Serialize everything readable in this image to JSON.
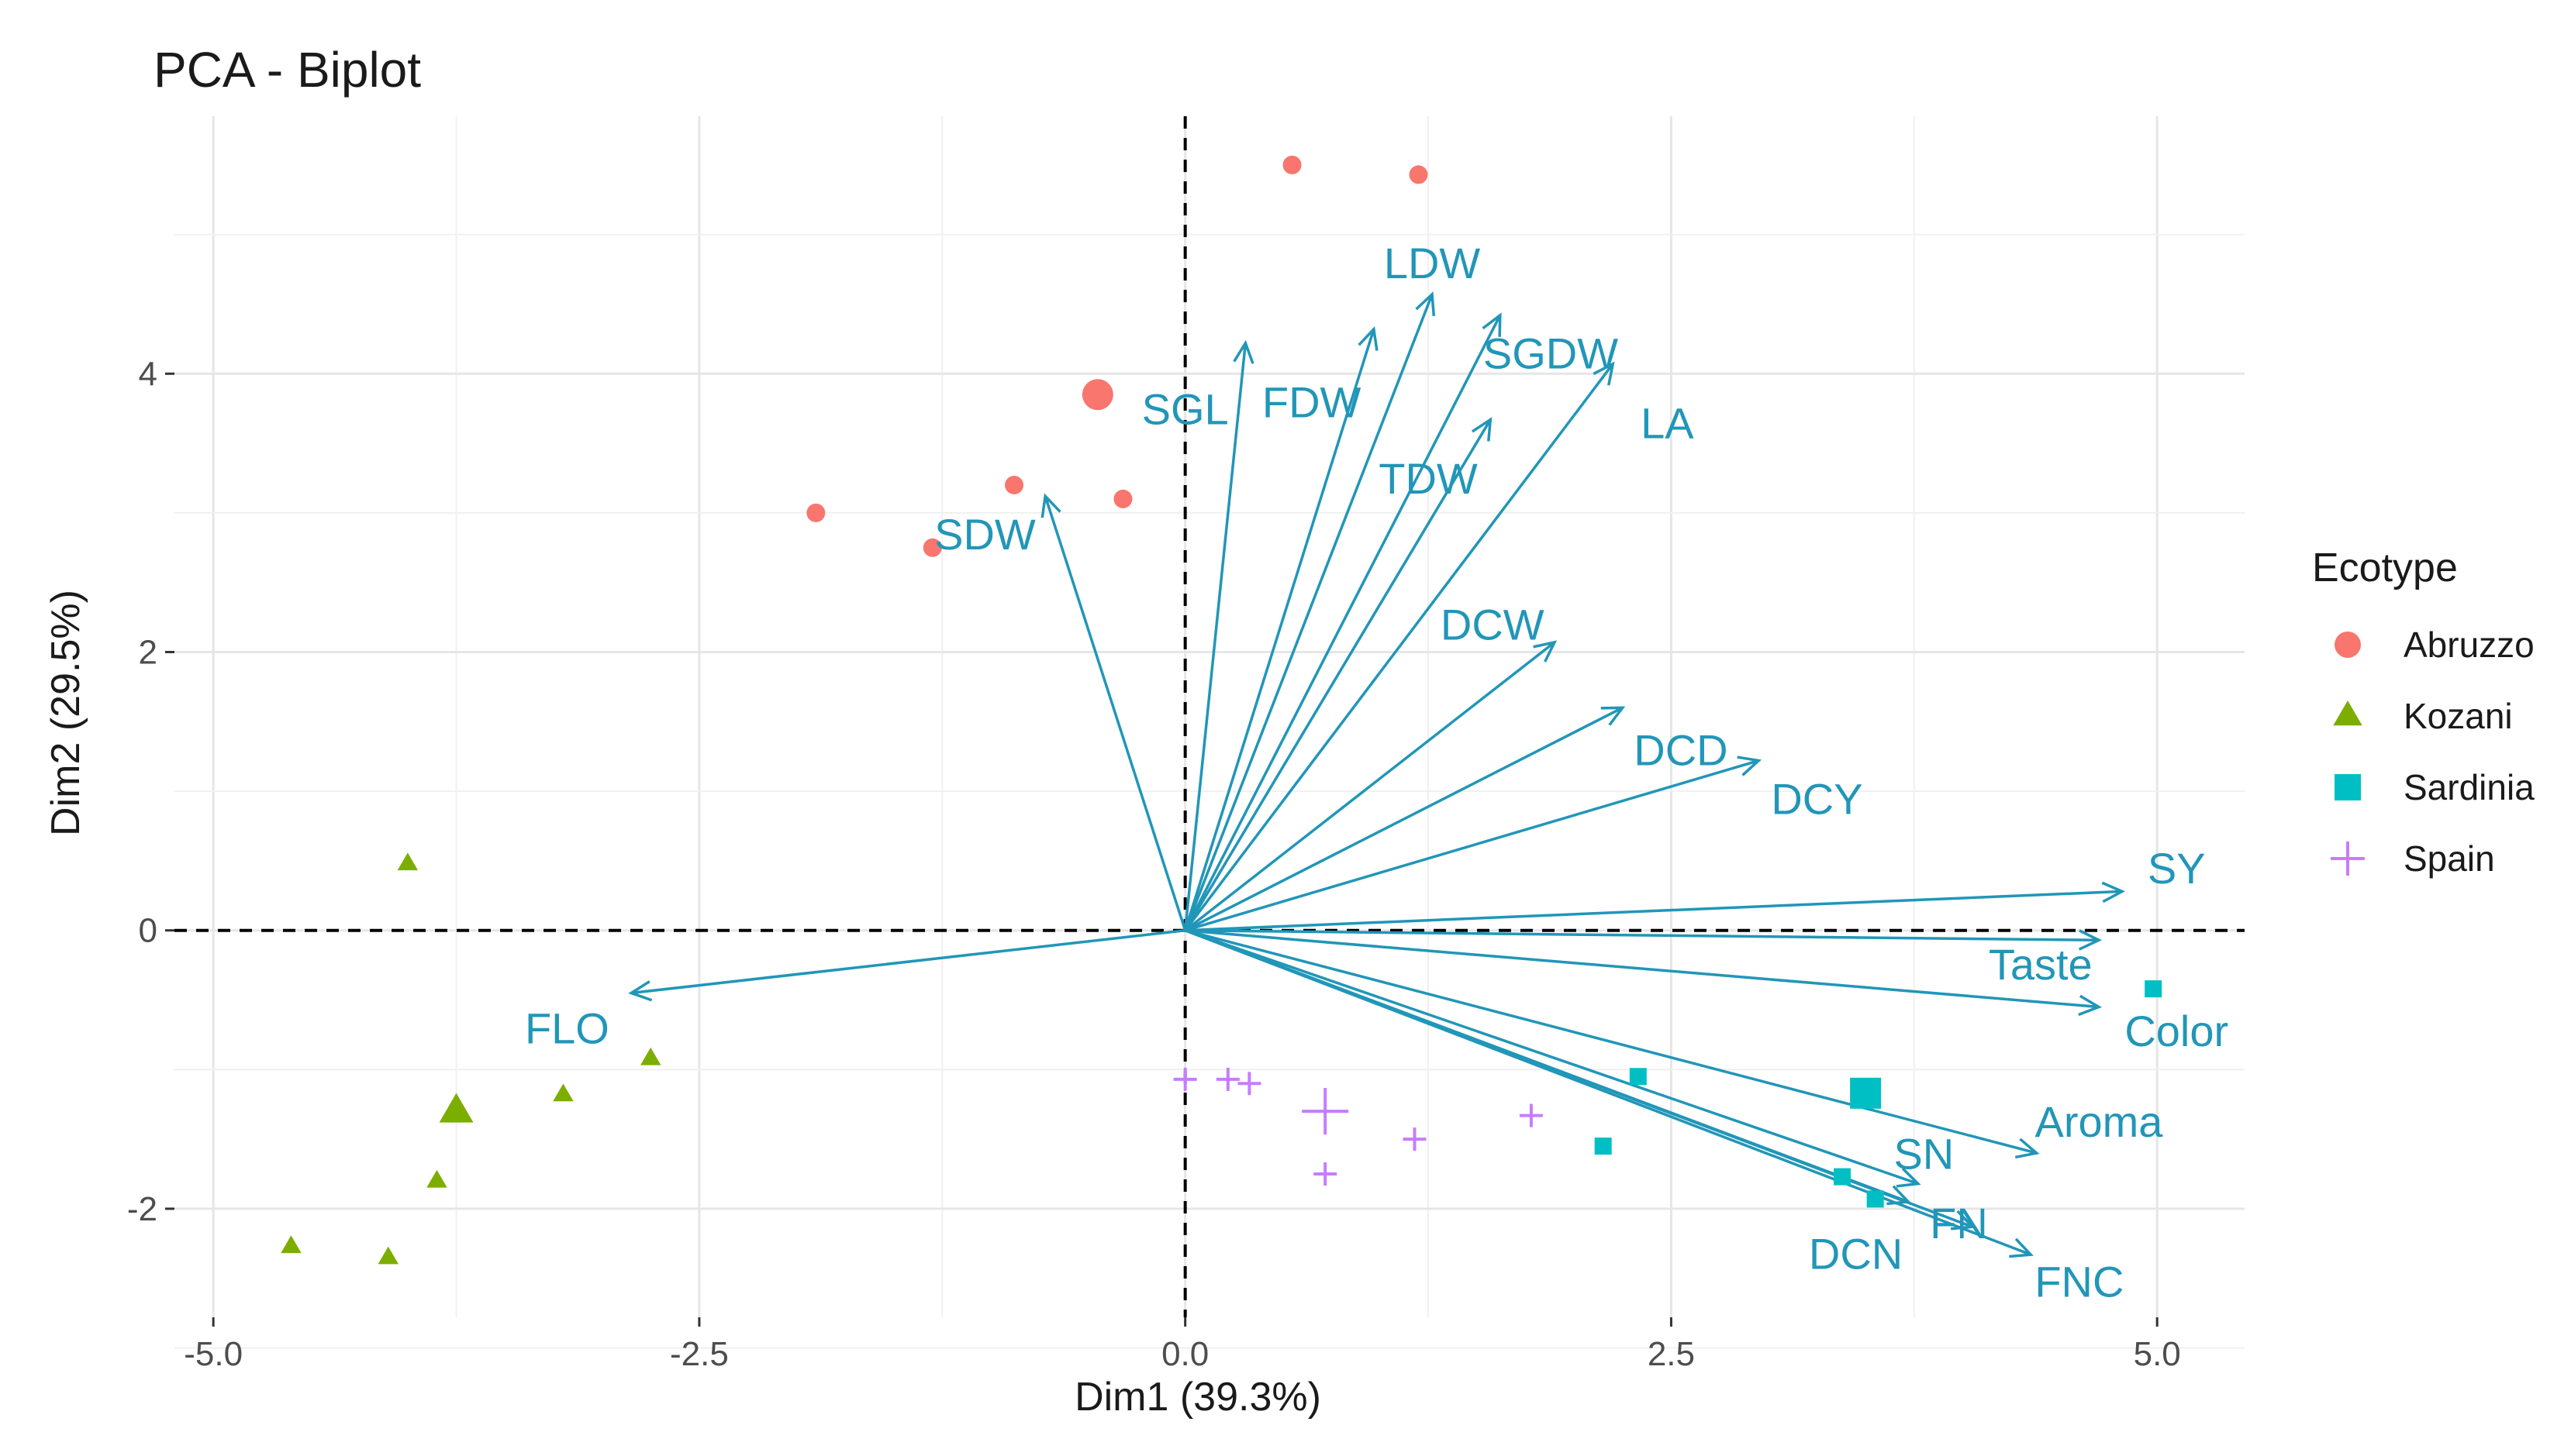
{
  "chart_data": {
    "type": "scatter",
    "title": "PCA - Biplot",
    "xlabel": "Dim1 (39.3%)",
    "ylabel": "Dim2 (29.5%)",
    "xlim": [
      -5.2,
      5.45
    ],
    "ylim": [
      -2.78,
      5.85
    ],
    "xticks": [
      -5.0,
      -2.5,
      0.0,
      2.5,
      5.0
    ],
    "xtick_labels": [
      "-5.0",
      "-2.5",
      "0.0",
      "2.5",
      "5.0"
    ],
    "yticks": [
      -2,
      0,
      2,
      4
    ],
    "ytick_labels": [
      "-2",
      "0",
      "2",
      "4"
    ],
    "grid": true,
    "reference_lines": {
      "x": 0,
      "y": 0,
      "style": "dashed"
    },
    "vector_color": "#2196b8",
    "variables": [
      {
        "name": "SDW",
        "x": -0.72,
        "y": 3.12,
        "label_x": -1.03,
        "label_y": 2.82
      },
      {
        "name": "SGL",
        "x": 0.31,
        "y": 4.22,
        "label_x": 0.0,
        "label_y": 3.72
      },
      {
        "name": "FDW",
        "x": 0.97,
        "y": 4.32,
        "label_x": 0.65,
        "label_y": 3.77
      },
      {
        "name": "LDW",
        "x": 1.27,
        "y": 4.57,
        "label_x": 1.27,
        "label_y": 4.77
      },
      {
        "name": "SGDW",
        "x": 1.62,
        "y": 4.42,
        "label_x": 1.88,
        "label_y": 4.12
      },
      {
        "name": "TDW",
        "x": 1.57,
        "y": 3.67,
        "label_x": 1.25,
        "label_y": 3.22
      },
      {
        "name": "LA",
        "x": 2.2,
        "y": 4.07,
        "label_x": 2.48,
        "label_y": 3.62
      },
      {
        "name": "DCW",
        "x": 1.9,
        "y": 2.07,
        "label_x": 1.58,
        "label_y": 2.17
      },
      {
        "name": "DCD",
        "x": 2.25,
        "y": 1.6,
        "label_x": 2.55,
        "label_y": 1.27
      },
      {
        "name": "DCY",
        "x": 2.95,
        "y": 1.22,
        "label_x": 3.25,
        "label_y": 0.92
      },
      {
        "name": "SY",
        "x": 4.82,
        "y": 0.28,
        "label_x": 5.1,
        "label_y": 0.42
      },
      {
        "name": "Taste",
        "x": 4.7,
        "y": -0.07,
        "label_x": 4.4,
        "label_y": -0.27
      },
      {
        "name": "Color",
        "x": 4.7,
        "y": -0.55,
        "label_x": 5.1,
        "label_y": -0.75
      },
      {
        "name": "Aroma",
        "x": 4.38,
        "y": -1.6,
        "label_x": 4.7,
        "label_y": -1.4
      },
      {
        "name": "SN",
        "x": 3.77,
        "y": -1.82,
        "label_x": 3.8,
        "label_y": -1.63
      },
      {
        "name": "FN",
        "x": 4.05,
        "y": -2.13,
        "label_x": 3.98,
        "label_y": -2.13
      },
      {
        "name": "FNC",
        "x": 4.35,
        "y": -2.33,
        "label_x": 4.6,
        "label_y": -2.55
      },
      {
        "name": "DCN",
        "x": 3.72,
        "y": -1.95,
        "label_x": 3.45,
        "label_y": -2.35
      },
      {
        "name": "FLO",
        "x": -2.85,
        "y": -0.45,
        "label_x": -3.18,
        "label_y": -0.73
      }
    ],
    "series": [
      {
        "name": "Abruzzo",
        "marker": "circle",
        "color": "#f8766d",
        "points": [
          [
            0.55,
            5.5
          ],
          [
            1.2,
            5.43
          ],
          [
            -0.88,
            3.2
          ],
          [
            -0.32,
            3.1
          ],
          [
            -1.9,
            3.0
          ],
          [
            -1.3,
            2.75
          ]
        ],
        "centroid": [
          -0.45,
          3.85
        ]
      },
      {
        "name": "Kozani",
        "marker": "triangle",
        "color": "#7cae00",
        "points": [
          [
            -4.0,
            0.48
          ],
          [
            -2.75,
            -0.92
          ],
          [
            -3.2,
            -1.18
          ],
          [
            -3.85,
            -1.8
          ],
          [
            -4.6,
            -2.27
          ],
          [
            -4.1,
            -2.35
          ]
        ],
        "centroid": [
          -3.75,
          -1.3
        ]
      },
      {
        "name": "Sardinia",
        "marker": "square",
        "color": "#00bfc4",
        "points": [
          [
            4.98,
            -0.42
          ],
          [
            2.33,
            -1.05
          ],
          [
            2.15,
            -1.55
          ],
          [
            3.38,
            -1.77
          ],
          [
            3.55,
            -1.93
          ]
        ],
        "centroid": [
          3.5,
          -1.17
        ]
      },
      {
        "name": "Spain",
        "marker": "plus",
        "color": "#c77cff",
        "points": [
          [
            0.0,
            -1.07
          ],
          [
            0.22,
            -1.07
          ],
          [
            0.33,
            -1.1
          ],
          [
            0.72,
            -1.75
          ],
          [
            1.18,
            -1.5
          ],
          [
            1.78,
            -1.33
          ]
        ],
        "centroid": [
          0.72,
          -1.3
        ]
      }
    ],
    "legend": {
      "title": "Ecotype",
      "position": "right",
      "entries": [
        "Abruzzo",
        "Kozani",
        "Sardinia",
        "Spain"
      ]
    }
  }
}
